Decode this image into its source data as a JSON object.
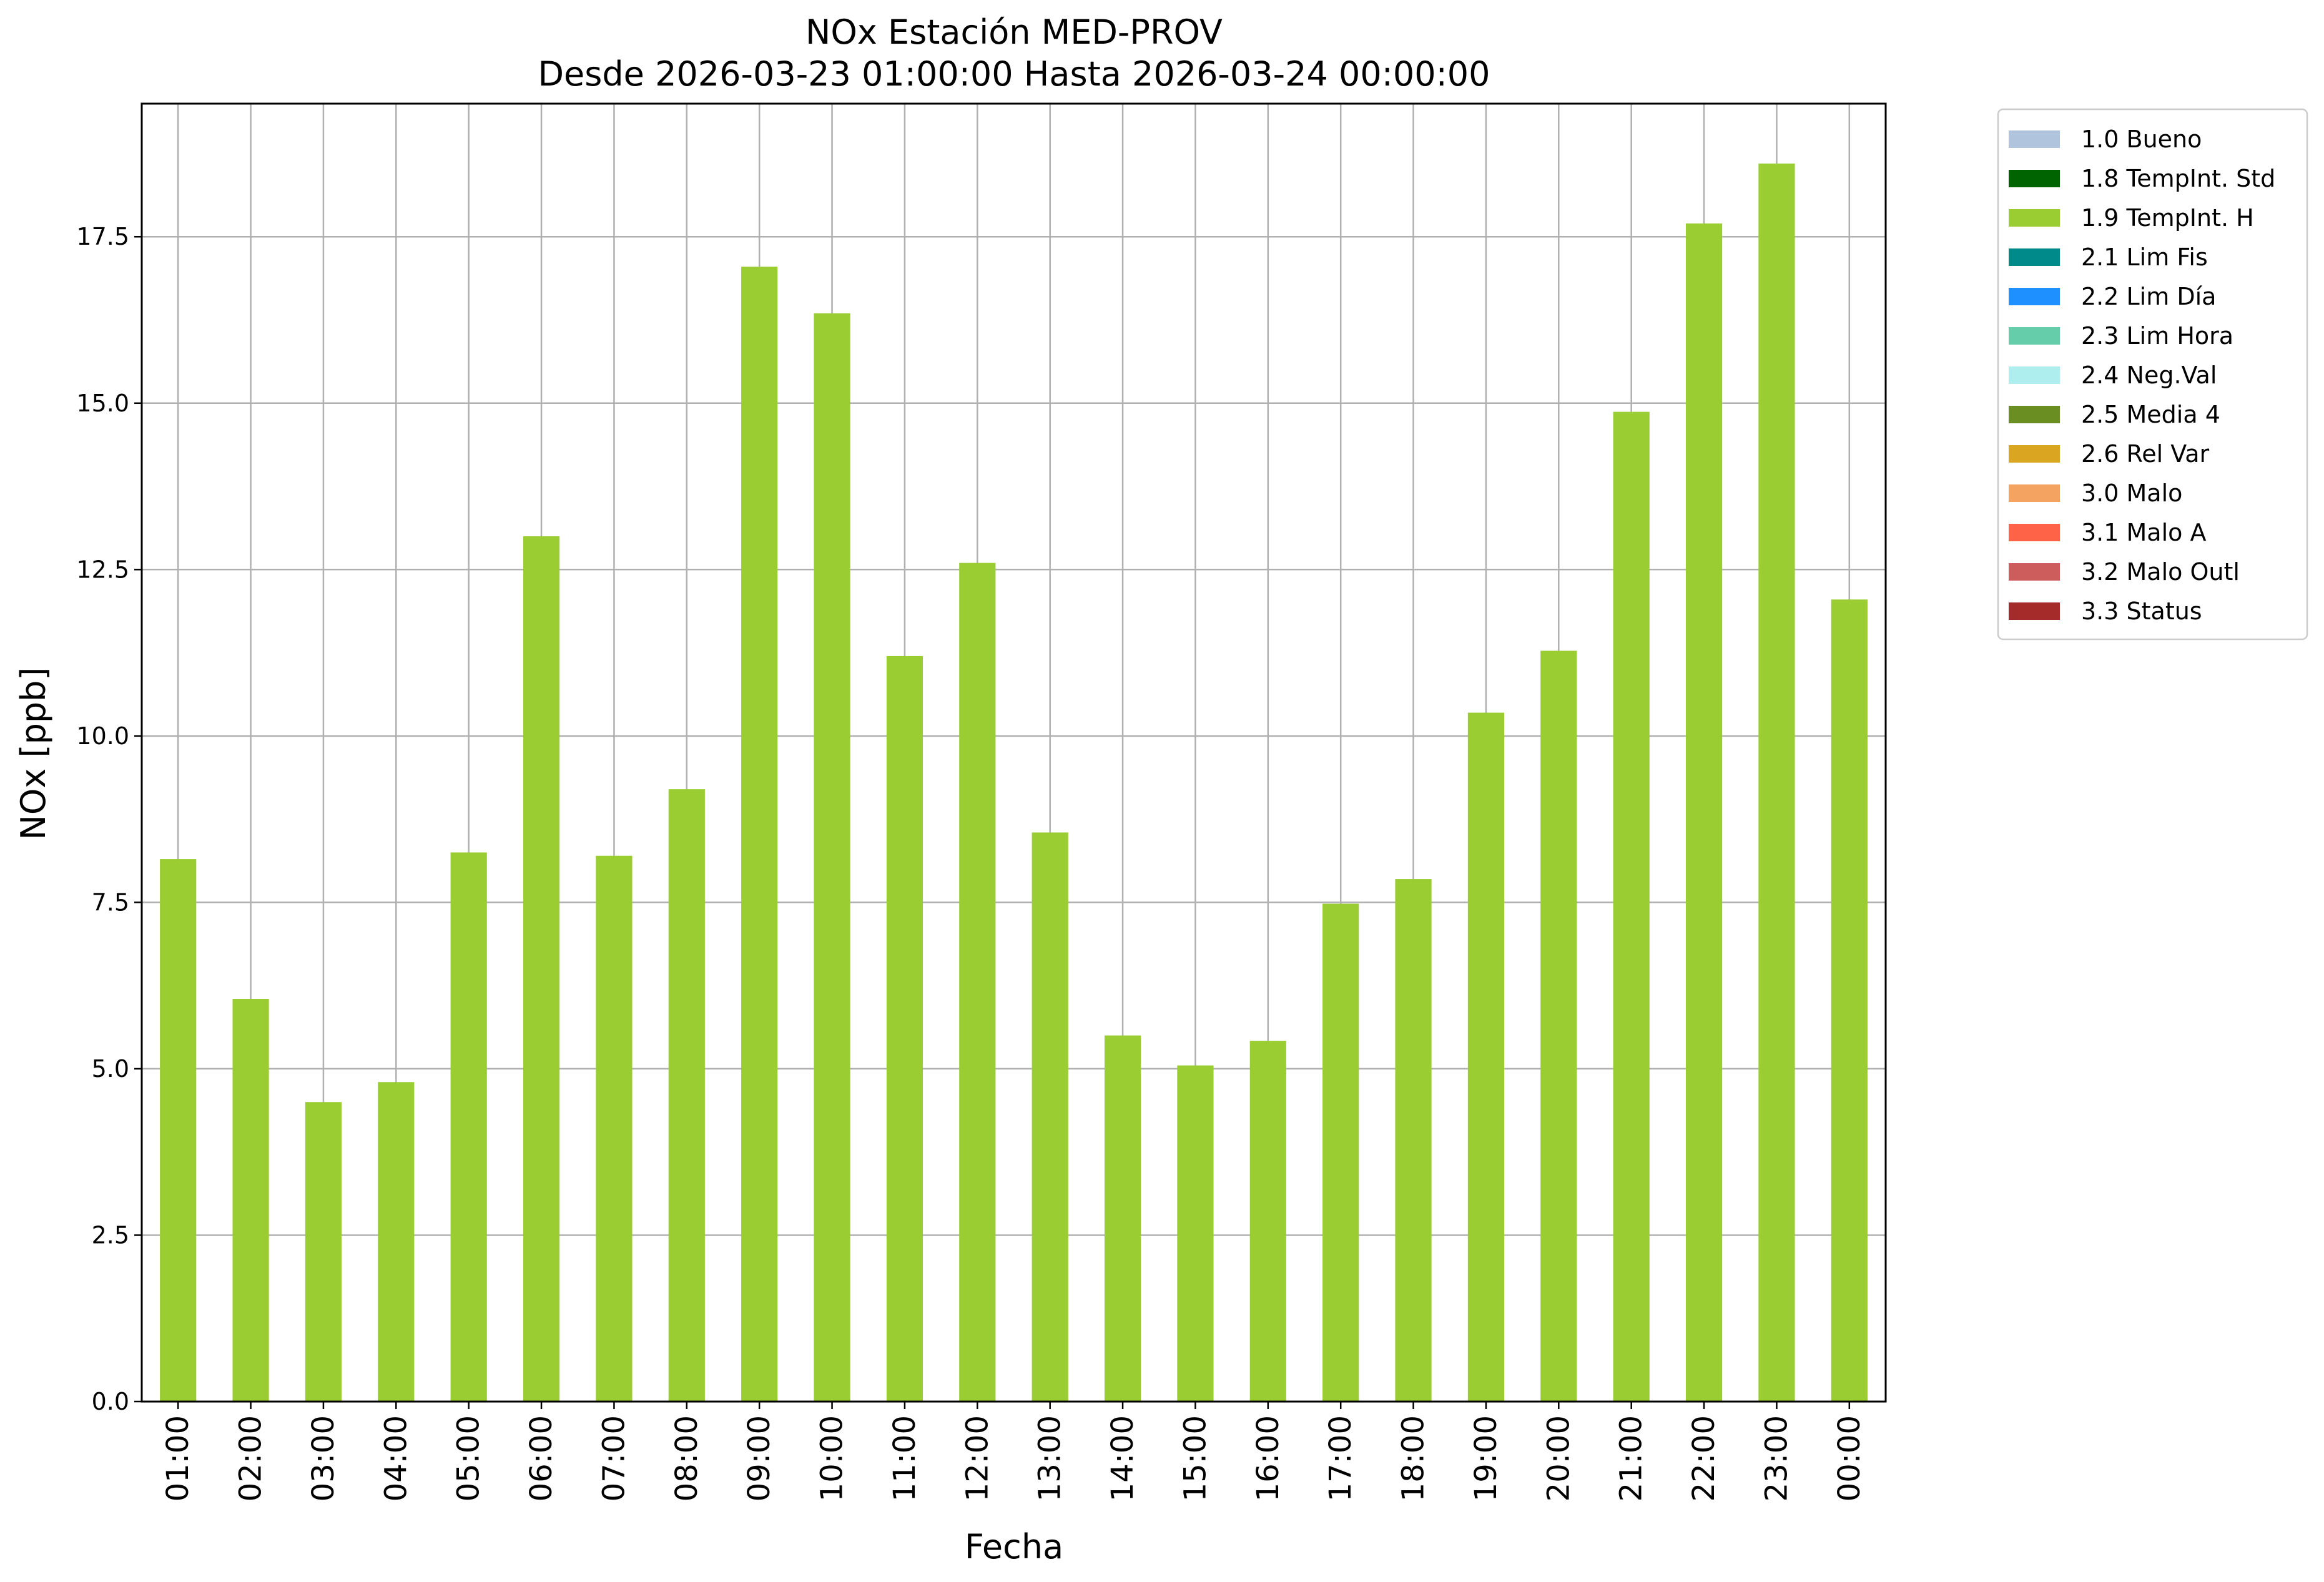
{
  "chart_data": {
    "type": "bar",
    "title": "NOx Estación MED-PROV",
    "subtitle": "Desde 2026-03-23 01:00:00 Hasta 2026-03-24 00:00:00",
    "xlabel": "Fecha",
    "ylabel": "NOx [ppb]",
    "ylim": [
      0,
      19.5
    ],
    "yticks": [
      "0.0",
      "2.5",
      "5.0",
      "7.5",
      "10.0",
      "12.5",
      "15.0",
      "17.5"
    ],
    "grid": true,
    "legend_position": "outside top-right",
    "categories": [
      "01:00",
      "02:00",
      "03:00",
      "04:00",
      "05:00",
      "06:00",
      "07:00",
      "08:00",
      "09:00",
      "10:00",
      "11:00",
      "12:00",
      "13:00",
      "14:00",
      "15:00",
      "16:00",
      "17:00",
      "18:00",
      "19:00",
      "20:00",
      "21:00",
      "22:00",
      "23:00",
      "00:00"
    ],
    "values": [
      8.15,
      6.05,
      4.5,
      4.8,
      8.25,
      13.0,
      8.2,
      9.2,
      17.05,
      16.35,
      11.2,
      12.6,
      8.55,
      5.5,
      5.05,
      5.42,
      7.48,
      7.85,
      10.35,
      11.28,
      14.87,
      17.7,
      18.6,
      12.05
    ],
    "bar_color": "#9acd32",
    "legend": [
      {
        "label": "1.0 Bueno",
        "color": "#b0c4de"
      },
      {
        "label": "1.8 TempInt. Std",
        "color": "#006400"
      },
      {
        "label": "1.9 TempInt. H",
        "color": "#9acd32"
      },
      {
        "label": "2.1 Lim Fis",
        "color": "#008b8b"
      },
      {
        "label": "2.2 Lim Día",
        "color": "#1e90ff"
      },
      {
        "label": "2.3 Lim Hora",
        "color": "#66cdaa"
      },
      {
        "label": "2.4 Neg.Val",
        "color": "#afeeee"
      },
      {
        "label": "2.5 Media 4",
        "color": "#6b8e23"
      },
      {
        "label": "2.6 Rel Var",
        "color": "#daa520"
      },
      {
        "label": "3.0 Malo",
        "color": "#f4a460"
      },
      {
        "label": "3.1 Malo A",
        "color": "#ff6347"
      },
      {
        "label": "3.2 Malo Outl",
        "color": "#cd5c5c"
      },
      {
        "label": "3.3 Status",
        "color": "#a52a2a"
      }
    ]
  }
}
